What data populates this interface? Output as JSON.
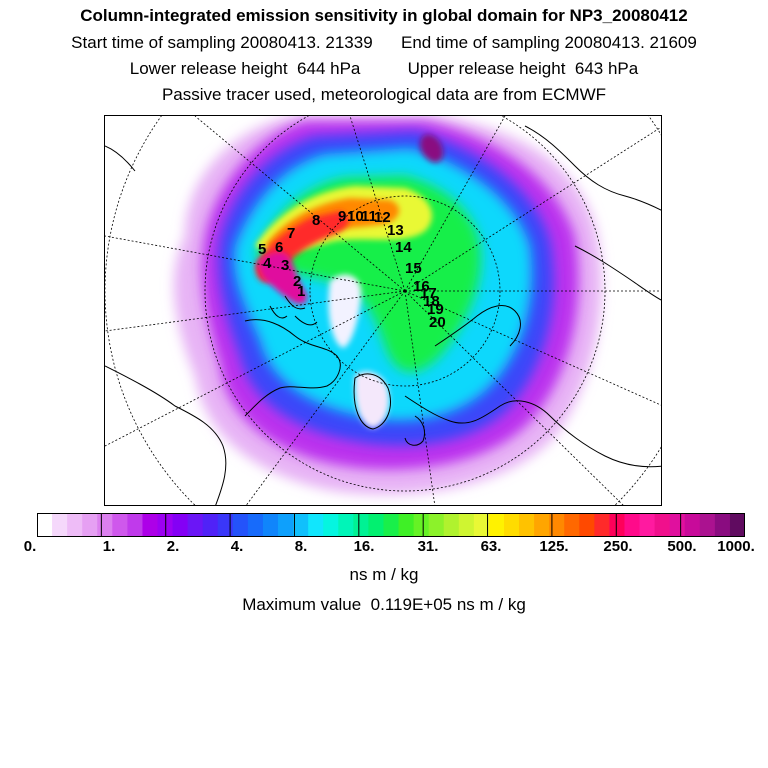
{
  "header": {
    "title": "Column-integrated emission sensitivity in global domain for NP3_20080412",
    "line2": "Start time of sampling 20080413. 21339      End time of sampling 20080413. 21609",
    "line3": "Lower release height  644 hPa          Upper release height  643 hPa",
    "line4": "Passive tracer used, meteorological data are from ECMWF"
  },
  "colorbar": {
    "colors": [
      "#ffffff",
      "#f5d8fb",
      "#eebcf7",
      "#e6a0f3",
      "#dc80ef",
      "#cf58ec",
      "#c03aeb",
      "#ad00e8",
      "#9c00f2",
      "#8400f5",
      "#6b16f6",
      "#5022f7",
      "#3a37f9",
      "#2453fa",
      "#176bfb",
      "#1085fb",
      "#0ea0fc",
      "#10c0fc",
      "#11e6fd",
      "#05f5e0",
      "#00f5b8",
      "#00f294",
      "#02f070",
      "#19ef4a",
      "#3ff026",
      "#66f225",
      "#8cf22a",
      "#b0f22e",
      "#cff531",
      "#e9f835",
      "#fff200",
      "#ffdc00",
      "#ffc200",
      "#ffa500",
      "#ff8800",
      "#ff6800",
      "#ff4900",
      "#ff2a2a",
      "#ff005a",
      "#ff0a8a",
      "#ff1aa0",
      "#f0108c",
      "#e0109e",
      "#c80a9a",
      "#ab1290",
      "#8a0c80",
      "#600b60"
    ],
    "tick_labels": [
      "0.",
      "1.",
      "2.",
      "4.",
      "8.",
      "16.",
      "31.",
      "63.",
      "125.",
      "250.",
      "500.",
      "1000."
    ],
    "unit": "ns m / kg"
  },
  "max_value_text": "Maximum value  0.119E+05 ns m / kg",
  "point_labels": [
    "1",
    "2",
    "3",
    "4",
    "5",
    "6",
    "7",
    "8",
    "9",
    "10",
    "11",
    "12",
    "13",
    "14",
    "15",
    "16",
    "17",
    "18",
    "19",
    "20"
  ]
}
